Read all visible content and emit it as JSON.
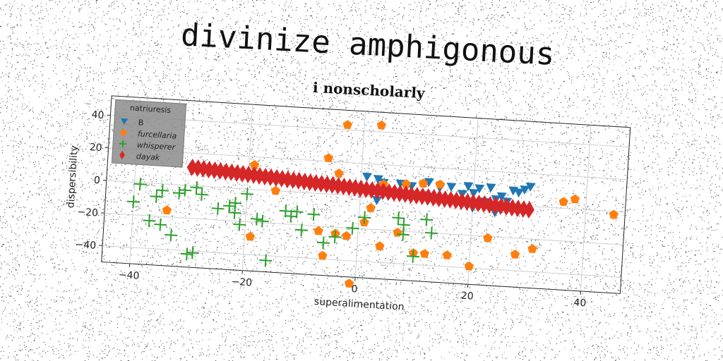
{
  "title": "divinize amphigonous",
  "subtitle": "i nonscholarly",
  "colors": {
    "B": "#1f77b4",
    "furcellaria": "#ff7f0e",
    "whisperer": "#2ca02c",
    "dayak": "#d62728"
  },
  "chart_data": {
    "type": "scatter",
    "xlabel": "superalimentation",
    "ylabel": "dispersibility",
    "xlim": [
      -45,
      47
    ],
    "ylim": [
      -50,
      52
    ],
    "xticks": [
      -40,
      -20,
      0,
      20,
      40
    ],
    "yticks": [
      -40,
      -20,
      0,
      20,
      40
    ],
    "grid": true,
    "legend": {
      "title": "natriuresis",
      "placement": "top-left"
    },
    "series": [
      {
        "name": "B",
        "marker": "triangle-down",
        "color": "#1f77b4",
        "points": [
          [
            1,
            12
          ],
          [
            3,
            11
          ],
          [
            4,
            9
          ],
          [
            7,
            9
          ],
          [
            9,
            8
          ],
          [
            12,
            11
          ],
          [
            14,
            8
          ],
          [
            16,
            9
          ],
          [
            18,
            5
          ],
          [
            19,
            10
          ],
          [
            20,
            6
          ],
          [
            21,
            9
          ],
          [
            22,
            1
          ],
          [
            23,
            10
          ],
          [
            24,
            3
          ],
          [
            25,
            5
          ],
          [
            26,
            2
          ],
          [
            27,
            -2
          ],
          [
            27,
            9
          ],
          [
            28,
            8
          ],
          [
            29,
            10
          ],
          [
            30,
            12
          ],
          [
            25,
            -1
          ],
          [
            24,
            -5
          ],
          [
            20,
            -3
          ],
          [
            8,
            1
          ],
          [
            3,
            -2
          ]
        ]
      },
      {
        "name": "furcellaria",
        "marker": "pentagon",
        "color": "#ff7f0e",
        "points": [
          [
            -3,
            43
          ],
          [
            3,
            44
          ],
          [
            -6,
            22
          ],
          [
            -4,
            13
          ],
          [
            -19,
            15
          ],
          [
            -15,
            0
          ],
          [
            -34,
            -16
          ],
          [
            -7,
            -23
          ],
          [
            -4,
            -24
          ],
          [
            -2,
            -25
          ],
          [
            1,
            -16
          ],
          [
            4,
            -30
          ],
          [
            7,
            -21
          ],
          [
            10,
            -33
          ],
          [
            12,
            -33
          ],
          [
            16,
            -33
          ],
          [
            20,
            -39
          ],
          [
            23,
            -21
          ],
          [
            28,
            -30
          ],
          [
            31,
            -26
          ],
          [
            8,
            9
          ],
          [
            14,
            10
          ],
          [
            11,
            10
          ],
          [
            4,
            8
          ],
          [
            2,
            -7
          ],
          [
            36,
            4
          ],
          [
            38,
            6
          ],
          [
            45,
            -2
          ],
          [
            -19,
            -29
          ],
          [
            -6,
            -38
          ],
          [
            -1,
            -54
          ]
        ]
      },
      {
        "name": "whisperer",
        "marker": "plus",
        "color": "#2ca02c",
        "points": [
          [
            -40,
            -12
          ],
          [
            -39,
            -1
          ],
          [
            -37,
            -23
          ],
          [
            -36,
            -8
          ],
          [
            -35,
            -25
          ],
          [
            -33,
            -31
          ],
          [
            -32,
            -5
          ],
          [
            -31,
            -3
          ],
          [
            -30,
            -42
          ],
          [
            -29,
            -41
          ],
          [
            -29,
            -1
          ],
          [
            -28,
            -5
          ],
          [
            -25,
            -13
          ],
          [
            -23,
            -11
          ],
          [
            -22,
            -9
          ],
          [
            -22,
            -15
          ],
          [
            -21,
            -22
          ],
          [
            -18,
            -18
          ],
          [
            -17,
            -19
          ],
          [
            -16,
            -43
          ],
          [
            -13,
            -12
          ],
          [
            -12,
            -15
          ],
          [
            -11,
            -12
          ],
          [
            -10,
            -23
          ],
          [
            -8,
            -13
          ],
          [
            -6,
            -30
          ],
          [
            -4,
            -26
          ],
          [
            -1,
            -20
          ],
          [
            1,
            -13
          ],
          [
            7,
            -12
          ],
          [
            8,
            -16
          ],
          [
            8,
            -22
          ],
          [
            12,
            -12
          ],
          [
            13,
            -20
          ],
          [
            10,
            -35
          ],
          [
            -35,
            -4
          ],
          [
            -20,
            -3
          ]
        ]
      },
      {
        "name": "dayak",
        "marker": "thin-diamond",
        "color": "#d62728",
        "points": [
          [
            -30,
            11.2
          ],
          [
            -29,
            11.0
          ],
          [
            -28,
            10.8
          ],
          [
            -27,
            10.5
          ],
          [
            -26,
            10.3
          ],
          [
            -25,
            10.1
          ],
          [
            -24,
            9.9
          ],
          [
            -23,
            9.7
          ],
          [
            -22,
            9.4
          ],
          [
            -21,
            9.2
          ],
          [
            -20,
            9.0
          ],
          [
            -19,
            8.8
          ],
          [
            -18,
            8.5
          ],
          [
            -17,
            8.3
          ],
          [
            -16,
            8.1
          ],
          [
            -15,
            7.9
          ],
          [
            -14,
            7.7
          ],
          [
            -13,
            7.4
          ],
          [
            -12,
            7.2
          ],
          [
            -11,
            7.0
          ],
          [
            -10,
            6.8
          ],
          [
            -9,
            6.5
          ],
          [
            -8,
            6.3
          ],
          [
            -7,
            6.1
          ],
          [
            -6,
            5.9
          ],
          [
            -5,
            5.7
          ],
          [
            -4,
            5.4
          ],
          [
            -3,
            5.2
          ],
          [
            -2,
            5.0
          ],
          [
            -1,
            4.8
          ],
          [
            0,
            4.5
          ],
          [
            1,
            4.3
          ],
          [
            2,
            4.1
          ],
          [
            3,
            3.9
          ],
          [
            4,
            3.7
          ],
          [
            5,
            3.4
          ],
          [
            6,
            3.2
          ],
          [
            7,
            3.0
          ],
          [
            8,
            2.8
          ],
          [
            9,
            2.5
          ],
          [
            10,
            2.3
          ],
          [
            11,
            2.1
          ],
          [
            12,
            1.9
          ],
          [
            13,
            1.7
          ],
          [
            14,
            1.4
          ],
          [
            15,
            1.2
          ],
          [
            16,
            1.0
          ],
          [
            17,
            0.8
          ],
          [
            18,
            0.5
          ],
          [
            19,
            0.3
          ],
          [
            20,
            0.1
          ],
          [
            21,
            -0.1
          ],
          [
            22,
            -0.3
          ],
          [
            23,
            -0.6
          ],
          [
            24,
            -0.8
          ],
          [
            25,
            -1.0
          ],
          [
            26,
            -1.2
          ],
          [
            27,
            -1.5
          ],
          [
            28,
            -1.7
          ],
          [
            29,
            -1.9
          ],
          [
            30,
            -2.1
          ]
        ]
      }
    ]
  }
}
